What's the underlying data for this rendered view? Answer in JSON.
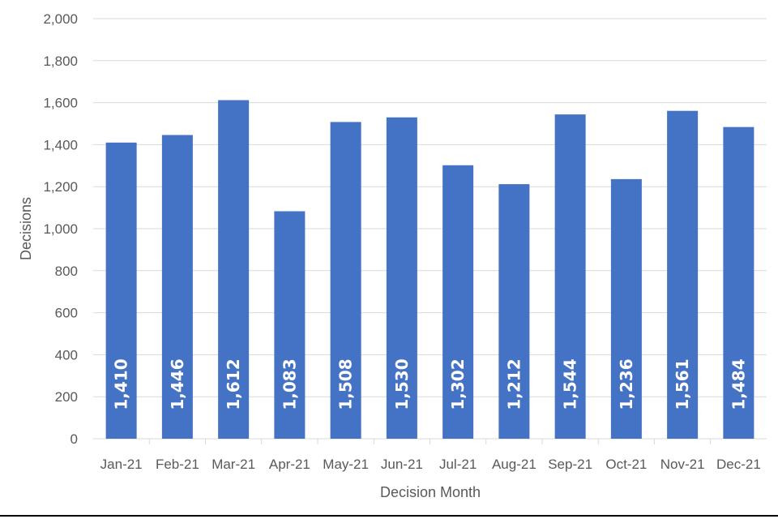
{
  "chart_data": {
    "type": "bar",
    "categories": [
      "Jan-21",
      "Feb-21",
      "Mar-21",
      "Apr-21",
      "May-21",
      "Jun-21",
      "Jul-21",
      "Aug-21",
      "Sep-21",
      "Oct-21",
      "Nov-21",
      "Dec-21"
    ],
    "series": [
      {
        "values": [
          1410,
          1446,
          1612,
          1083,
          1508,
          1530,
          1302,
          1212,
          1544,
          1236,
          1561,
          1484
        ],
        "color": "#4472c4"
      }
    ],
    "data_labels": [
      "1,410",
      "1,446",
      "1,612",
      "1,083",
      "1,508",
      "1,530",
      "1,302",
      "1,212",
      "1,544",
      "1,236",
      "1,561",
      "1,484"
    ],
    "xlabel": "Decision Month",
    "ylabel": "Decisions",
    "ylim": [
      0,
      2000
    ],
    "yticks": [
      0,
      200,
      400,
      600,
      800,
      1000,
      1200,
      1400,
      1600,
      1800,
      2000
    ],
    "ytick_labels": [
      "0",
      "200",
      "400",
      "600",
      "800",
      "1,000",
      "1,200",
      "1,400",
      "1,600",
      "1,800",
      "2,000"
    ],
    "grid": true,
    "gridline_color": "#d9d9d9",
    "label_color": "#595959"
  }
}
